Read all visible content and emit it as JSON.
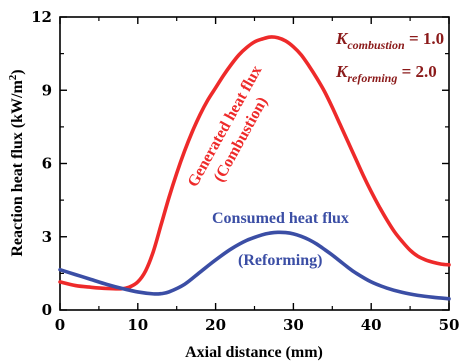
{
  "chart_data": {
    "type": "line",
    "xlabel": "Axial distance (mm)",
    "ylabel_main": "Reaction heat flux (kW/m",
    "ylabel_sup": "2",
    "ylabel_close": ")",
    "xlim": [
      0,
      50
    ],
    "ylim": [
      0,
      12
    ],
    "x_ticks": [
      "0",
      "10",
      "20",
      "30",
      "40",
      "50"
    ],
    "y_ticks": [
      "0",
      "3",
      "6",
      "9",
      "12"
    ],
    "grid": false,
    "series": [
      {
        "name": "Generated heat flux (Combustion)",
        "color": "#ee2a2a",
        "x": [
          0,
          2,
          4,
          6,
          8,
          9,
          10,
          11,
          12,
          13,
          14,
          15,
          16,
          17,
          18,
          19,
          20,
          21,
          22,
          23,
          24,
          25,
          26,
          27,
          28,
          29,
          30,
          31,
          32,
          33,
          34,
          35,
          36,
          37,
          38,
          39,
          40,
          41,
          42,
          43,
          44,
          45,
          46,
          47,
          48,
          49,
          50
        ],
        "y": [
          1.15,
          1.0,
          0.93,
          0.88,
          0.87,
          0.95,
          1.15,
          1.6,
          2.4,
          3.5,
          4.6,
          5.6,
          6.5,
          7.3,
          8.0,
          8.6,
          9.1,
          9.6,
          10.05,
          10.45,
          10.75,
          10.98,
          11.1,
          11.18,
          11.15,
          11.02,
          10.78,
          10.45,
          10.0,
          9.5,
          8.95,
          8.3,
          7.6,
          6.9,
          6.2,
          5.5,
          4.85,
          4.25,
          3.7,
          3.2,
          2.8,
          2.45,
          2.2,
          2.05,
          1.95,
          1.88,
          1.85
        ]
      },
      {
        "name": "Consumed heat flux (Reforming)",
        "color": "#3b4ea5",
        "x": [
          0,
          2,
          4,
          6,
          8,
          10,
          12,
          13,
          14,
          16,
          18,
          20,
          22,
          24,
          26,
          27,
          28,
          29,
          30,
          31,
          32,
          33,
          34,
          35,
          36,
          37,
          38,
          40,
          42,
          44,
          46,
          48,
          50
        ],
        "y": [
          1.65,
          1.45,
          1.25,
          1.05,
          0.88,
          0.74,
          0.66,
          0.67,
          0.74,
          1.05,
          1.55,
          2.05,
          2.5,
          2.85,
          3.08,
          3.15,
          3.18,
          3.17,
          3.12,
          3.02,
          2.88,
          2.7,
          2.48,
          2.25,
          2.0,
          1.75,
          1.52,
          1.15,
          0.9,
          0.72,
          0.6,
          0.52,
          0.46
        ]
      }
    ],
    "annotations": {
      "generated_line1": "Generated heat flux",
      "generated_line2": "(Combustion)",
      "consumed_line1": "Consumed heat flux",
      "consumed_line2": "(Reforming)",
      "k_comb_main": "K",
      "k_comb_sub": "combustion",
      "k_comb_val": " = 1.0",
      "k_ref_main": "K",
      "k_ref_sub": "reforming",
      "k_ref_val": " = 2.0",
      "k_color": "#8b1a1a"
    }
  }
}
